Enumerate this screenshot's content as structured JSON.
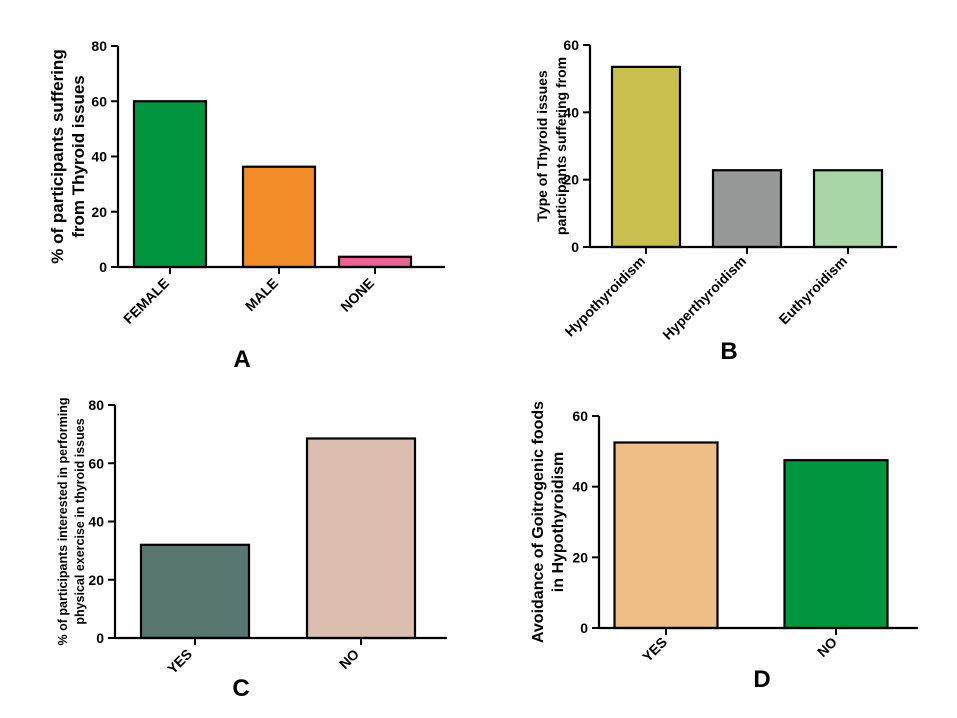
{
  "chart_data": [
    {
      "type": "bar",
      "panel": "A",
      "categories": [
        "FEMALE",
        "MALE",
        "NONE"
      ],
      "values": [
        60,
        36.3,
        3.7
      ],
      "colors": [
        "#00963f",
        "#f28c28",
        "#e86494"
      ],
      "ylabel": [
        "% of participants suffering",
        "from Thyroid issues"
      ],
      "ylim": [
        0,
        80
      ],
      "yticks": [
        "0",
        "20",
        "40",
        "60",
        "80"
      ],
      "grid": false
    },
    {
      "type": "bar",
      "panel": "B",
      "categories": [
        "Hypothyroidism",
        "Hyperthyroidism",
        "Euthyroidism"
      ],
      "values": [
        53.5,
        22.8,
        22.8
      ],
      "colors": [
        "#c8bf4f",
        "#979999",
        "#a9d6a6"
      ],
      "ylabel": [
        "Type of Thyroid issues",
        "participants suffering from"
      ],
      "ylim": [
        0,
        60
      ],
      "yticks": [
        "0",
        "20",
        "40",
        "60"
      ],
      "grid": false
    },
    {
      "type": "bar",
      "panel": "C",
      "categories": [
        "YES",
        "NO"
      ],
      "values": [
        32,
        68.5
      ],
      "colors": [
        "#587771",
        "#dbbeb0"
      ],
      "ylabel": [
        "% of participants interested in performing",
        "physical exercise in thyroid issues"
      ],
      "ylim": [
        0,
        80
      ],
      "yticks": [
        "0",
        "20",
        "40",
        "60",
        "80"
      ],
      "grid": false
    },
    {
      "type": "bar",
      "panel": "D",
      "categories": [
        "YES",
        "NO"
      ],
      "values": [
        52.5,
        47.5
      ],
      "colors": [
        "#eebe86",
        "#00963f"
      ],
      "ylabel": [
        "Avoidance of Goitrogenic foods",
        "in Hypothyroidism"
      ],
      "ylim": [
        0,
        60
      ],
      "yticks": [
        "0",
        "20",
        "40",
        "60"
      ],
      "grid": false
    }
  ]
}
